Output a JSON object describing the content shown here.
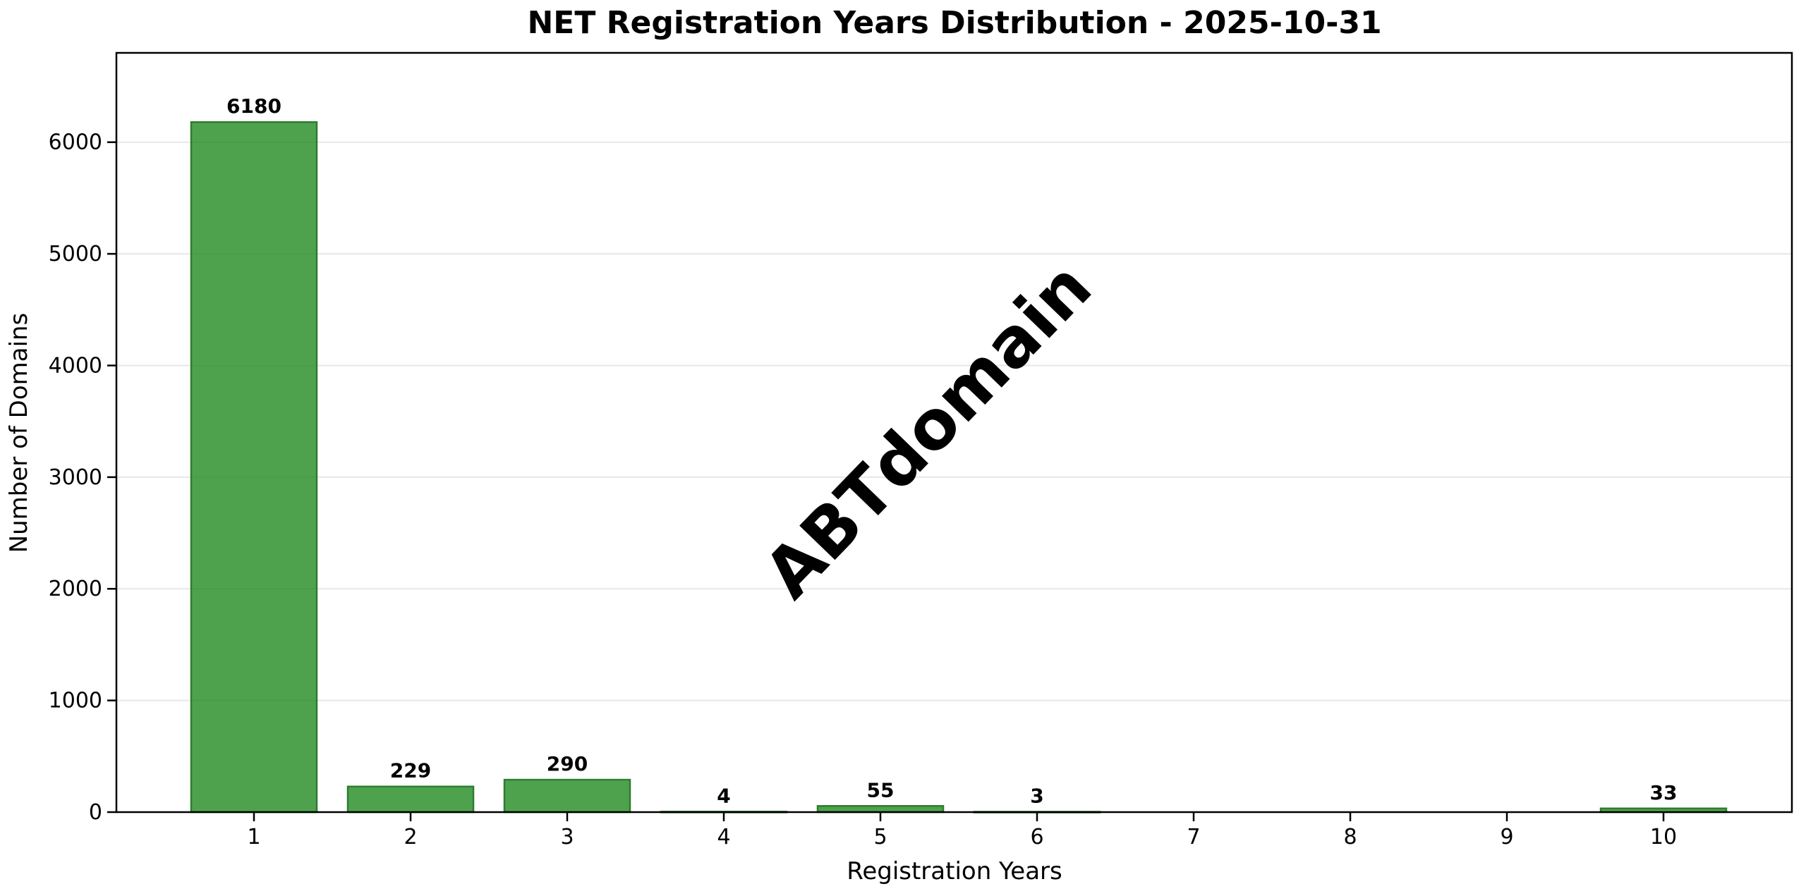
{
  "watermark": "ABTdomain",
  "chart_data": {
    "type": "bar",
    "title": "NET Registration Years Distribution - 2025-10-31",
    "xlabel": "Registration Years",
    "ylabel": "Number of Domains",
    "categories": [
      "1",
      "2",
      "3",
      "4",
      "5",
      "6",
      "7",
      "8",
      "9",
      "10"
    ],
    "values": [
      6180,
      229,
      290,
      4,
      55,
      3,
      0,
      0,
      0,
      33
    ],
    "bar_labels": [
      "6180",
      "229",
      "290",
      "4",
      "55",
      "3",
      "",
      "",
      "",
      "33"
    ],
    "ylim": [
      0,
      6800
    ],
    "yticks": [
      0,
      1000,
      2000,
      3000,
      4000,
      5000,
      6000
    ],
    "grid": "horizontal",
    "legend": "none",
    "colors": {
      "bar_fill": "rgba(34,139,34,0.8)",
      "bar_fill_flat": "#4EA24E",
      "bar_edge": "#2E7D2E",
      "grid_line": "#E7E7E7",
      "axis_line": "#000000",
      "text": "#000000",
      "watermark": "rgba(128,128,128,0.3)",
      "background": "#FFFFFF"
    }
  }
}
